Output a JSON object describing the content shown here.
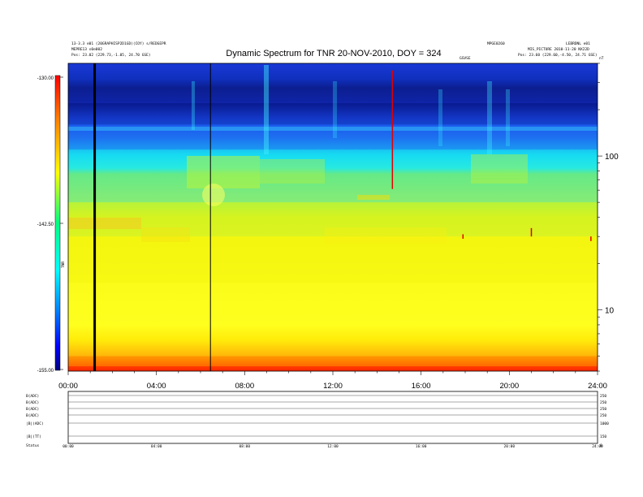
{
  "chart_data": {
    "type": "heatmap",
    "title": "Dynamic Spectrum for TNR 20-NOV-2010, DOY = 324",
    "header_left": [
      "13-3.3 e01 (20GRAPHISP2D1GD)(COY) s/REDGEPR",
      "MEPRE13 s0e002",
      "Pos:    23.02 (229.73,-1.05, 24.70 GSE)"
    ],
    "header_right": [
      "MPGE0260",
      "LEBRDNL e01",
      "MIS_PICTURE 2010-11-20 NX22D",
      "Pos:    23.60 (229.60,-4.50, 24.71 GSE)"
    ],
    "header_mid_right": "GSVSE",
    "header_corner": "nT",
    "colorbar": {
      "label": "TNR",
      "ticks": [
        "-130.00",
        "-142.50",
        "-155.00"
      ],
      "stops": [
        "#ff0000",
        "#ff8000",
        "#ffff00",
        "#00ff80",
        "#00ffff",
        "#0080ff",
        "#0000ff",
        "#000080"
      ]
    },
    "y_axis": {
      "scale": "log",
      "ticks": [
        "100",
        "10"
      ],
      "range": [
        4,
        400
      ]
    },
    "x_axis": {
      "ticks": [
        "00:00",
        "04:00",
        "08:00",
        "12:00",
        "16:00",
        "20:00",
        "24:00"
      ],
      "range": [
        0,
        24
      ]
    },
    "bands": [
      {
        "f_low": 220,
        "f_high": 400,
        "color": "#1a3ad8"
      },
      {
        "f_low": 160,
        "f_high": 220,
        "color": "#0a1a90"
      },
      {
        "f_low": 110,
        "f_high": 160,
        "color": "#1e5cf0"
      },
      {
        "f_low": 50,
        "f_high": 110,
        "color": "#18ddf0"
      },
      {
        "f_low": 30,
        "f_high": 50,
        "color": "#a8f040"
      },
      {
        "f_low": 15,
        "f_high": 30,
        "color": "#f2f60c"
      },
      {
        "f_low": 5,
        "f_high": 15,
        "color": "#ffff1e"
      },
      {
        "f_low": 4.3,
        "f_high": 5,
        "color": "#ffb000"
      },
      {
        "f_low": 4,
        "f_high": 4.3,
        "color": "#ff3000"
      }
    ],
    "data_gaps": [
      {
        "t": 1.2,
        "width": 3
      },
      {
        "t": 6.45,
        "width": 1
      }
    ],
    "bursts": [
      {
        "t": 14.7,
        "f_top": 360,
        "f_bottom": 61,
        "color": "#e00000"
      },
      {
        "t": 21.0,
        "f_top": 34,
        "f_bottom": 30,
        "color": "#e00000"
      },
      {
        "t": 17.9,
        "f_top": 31,
        "f_bottom": 29,
        "color": "#e00000"
      },
      {
        "t": 23.7,
        "f_top": 30,
        "f_bottom": 28,
        "color": "#e00000"
      }
    ],
    "sub_panels": {
      "labels": [
        "B(ADC)",
        "B(ADC)",
        "B(ADC)",
        "B(ADC)",
        "|B|(ADC)",
        "|B|(TT)",
        "Status"
      ],
      "right_labels": [
        "250",
        "250",
        "250",
        "250",
        "1000",
        "150",
        "0"
      ],
      "x_ticks": [
        "00:00",
        "04:00",
        "08:00",
        "12:00",
        "16:00",
        "20:00",
        "24:00"
      ]
    }
  }
}
